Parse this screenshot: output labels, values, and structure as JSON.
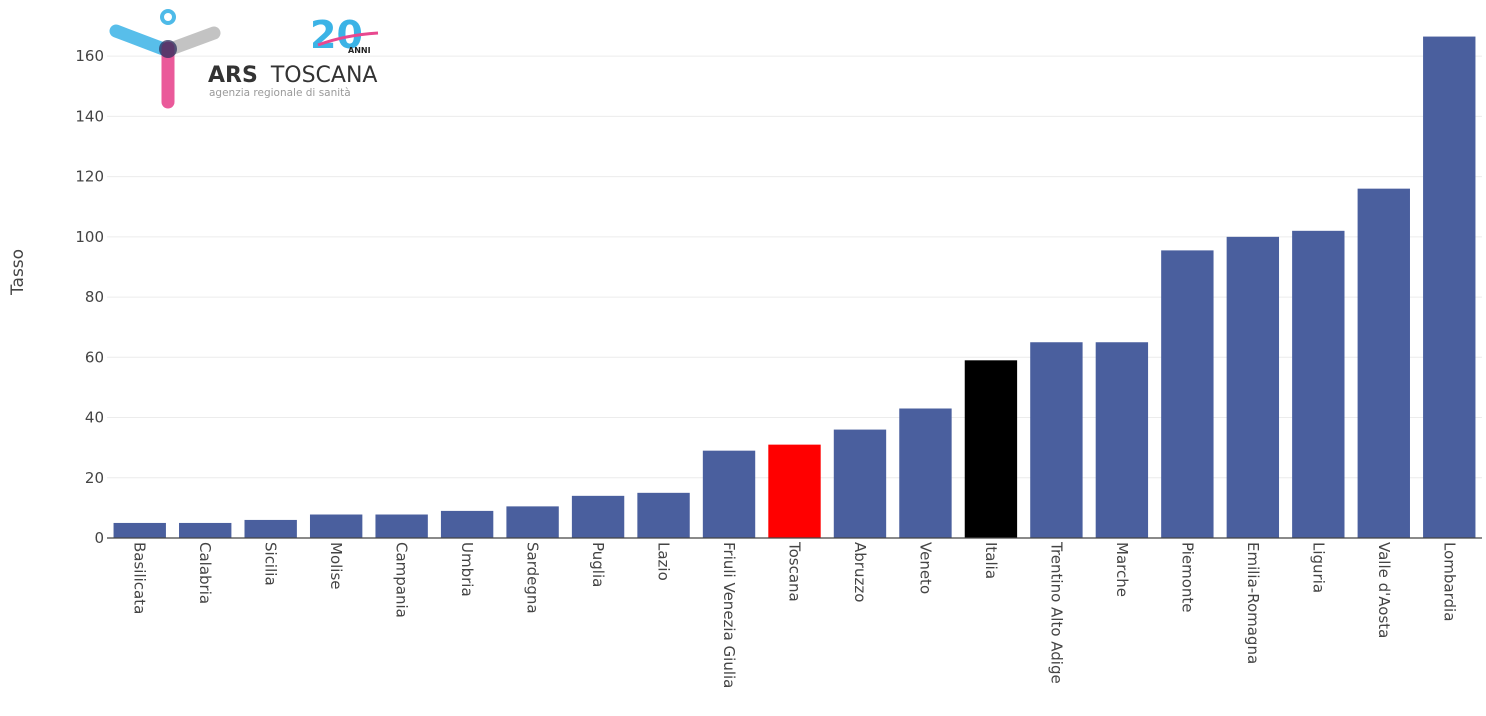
{
  "colors": {
    "bar_default": "#4a5f9e",
    "bar_highlight_toscana": "#ff0000",
    "bar_highlight_italia": "#000000",
    "logo_blue": "#3bb3e6",
    "logo_pink": "#e8488f",
    "logo_grey": "#b9b9b9"
  },
  "logo": {
    "brand_bold": "ARS",
    "brand_light": "TOSCANA",
    "subtitle": "agenzia regionale di sanità",
    "anniversary_number": "20",
    "anniversary_word": "ANNI"
  },
  "chart_data": {
    "type": "bar",
    "title": "",
    "xlabel": "",
    "ylabel": "Tasso",
    "ylim": [
      0,
      172
    ],
    "yticks": [
      0,
      20,
      40,
      60,
      80,
      100,
      120,
      140,
      160
    ],
    "grid": true,
    "categories": [
      "Basilicata",
      "Calabria",
      "Sicilia",
      "Molise",
      "Campania",
      "Umbria",
      "Sardegna",
      "Puglia",
      "Lazio",
      "Friuli Venezia Giulia",
      "Toscana",
      "Abruzzo",
      "Veneto",
      "Italia",
      "Trentino Alto Adige",
      "Marche",
      "Piemonte",
      "Emilia-Romagna",
      "Liguria",
      "Valle d'Aosta",
      "Lombardia"
    ],
    "values": [
      5,
      5,
      6,
      7.8,
      7.8,
      9,
      10.5,
      14,
      15,
      29,
      31,
      36,
      43,
      59,
      65,
      65,
      95.5,
      100,
      102,
      116,
      166.5
    ],
    "highlight": {
      "Toscana": "bar_highlight_toscana",
      "Italia": "bar_highlight_italia"
    }
  }
}
